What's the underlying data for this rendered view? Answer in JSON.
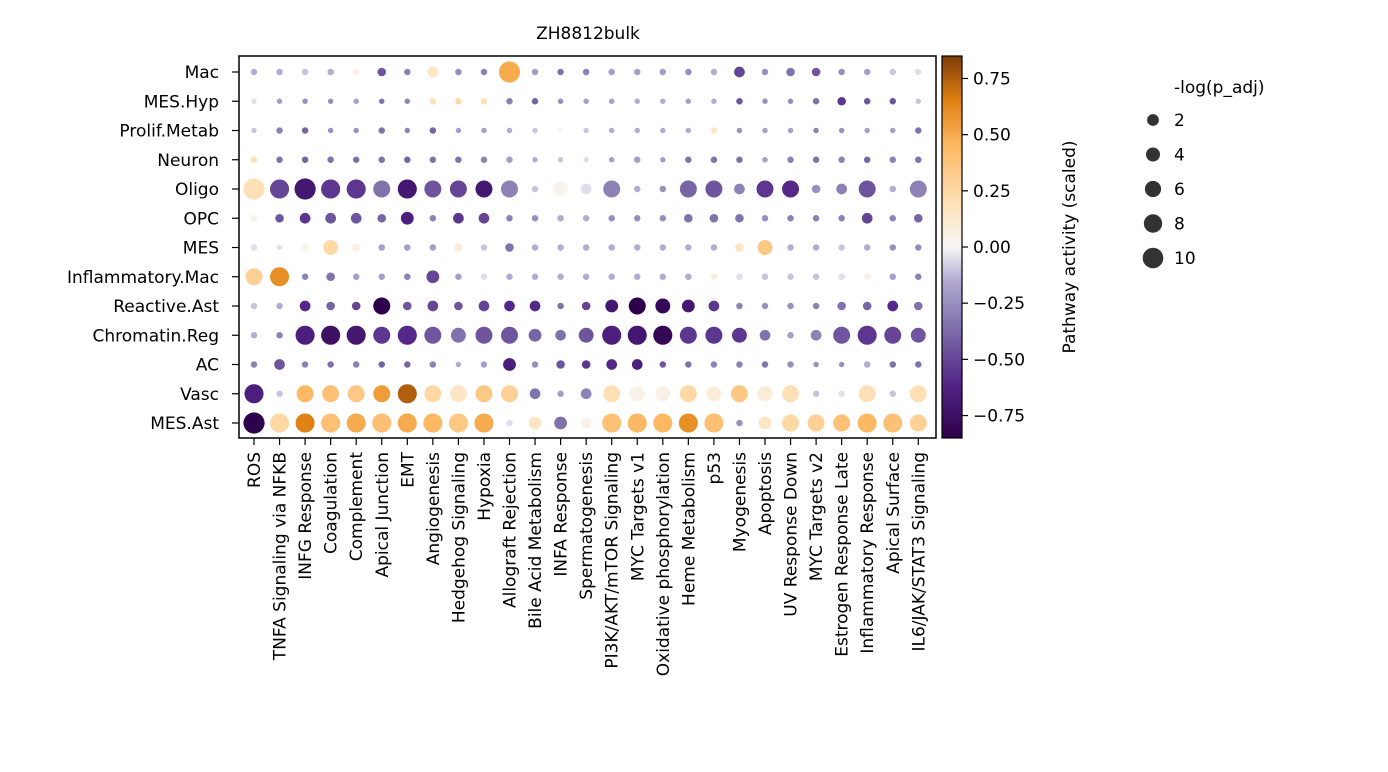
{
  "chart_data": {
    "type": "dotplot",
    "title": "ZH8812bulk",
    "rows": [
      "Mac",
      "MES.Hyp",
      "Prolif.Metab",
      "Neuron",
      "Oligo",
      "OPC",
      "MES",
      "Inflammatory.Mac",
      "Reactive.Ast",
      "Chromatin.Reg",
      "AC",
      "Vasc",
      "MES.Ast"
    ],
    "columns": [
      "ROS",
      "TNFA Signaling via NFKB",
      "INFG Response",
      "Coagulation",
      "Complement",
      "Apical Junction",
      "EMT",
      "Angiogenesis",
      "Hedgehog Signaling",
      "Hypoxia",
      "Allograft Rejection",
      "Bile Acid Metabolism",
      "INFA Response",
      "Spermatogenesis",
      "PI3K/AKT/mTOR Signaling",
      "MYC Targets v1",
      "Oxidative phosphorylation",
      "Heme Metabolism",
      "p53",
      "Myogenesis",
      "Apoptosis",
      "UV Response Down",
      "MYC Targets v2",
      "Estrogen Response Late",
      "Inflammatory Response",
      "Apical Surface",
      "IL6/JAK/STAT3 Signaling"
    ],
    "activity": [
      [
        -0.15,
        -0.15,
        -0.1,
        -0.15,
        0.05,
        -0.45,
        -0.3,
        0.15,
        -0.25,
        -0.3,
        0.5,
        -0.2,
        -0.35,
        -0.3,
        -0.2,
        -0.2,
        -0.2,
        -0.25,
        -0.15,
        -0.5,
        -0.25,
        -0.35,
        -0.45,
        -0.25,
        -0.2,
        -0.1,
        -0.05
      ],
      [
        -0.05,
        -0.2,
        -0.25,
        -0.25,
        -0.2,
        -0.35,
        -0.3,
        0.2,
        0.25,
        0.2,
        -0.3,
        -0.4,
        -0.25,
        -0.2,
        -0.2,
        -0.15,
        -0.15,
        -0.2,
        -0.15,
        -0.45,
        -0.25,
        -0.25,
        -0.35,
        -0.55,
        -0.45,
        -0.45,
        -0.1
      ],
      [
        -0.1,
        -0.3,
        -0.4,
        -0.25,
        -0.25,
        -0.35,
        -0.3,
        -0.4,
        -0.2,
        -0.2,
        -0.15,
        -0.1,
        0.02,
        -0.1,
        -0.15,
        -0.15,
        -0.15,
        -0.15,
        0.15,
        -0.25,
        -0.2,
        -0.2,
        -0.3,
        -0.25,
        -0.2,
        -0.2,
        -0.35
      ],
      [
        0.2,
        -0.35,
        -0.4,
        -0.35,
        -0.35,
        -0.35,
        -0.4,
        -0.35,
        -0.35,
        -0.3,
        -0.2,
        -0.15,
        -0.1,
        -0.05,
        -0.2,
        -0.2,
        -0.2,
        -0.35,
        -0.35,
        -0.35,
        -0.2,
        -0.3,
        -0.35,
        -0.3,
        -0.4,
        -0.3,
        -0.35
      ],
      [
        0.2,
        -0.5,
        -0.7,
        -0.55,
        -0.55,
        -0.35,
        -0.7,
        -0.45,
        -0.5,
        -0.7,
        -0.3,
        -0.1,
        0.03,
        -0.05,
        -0.3,
        -0.15,
        -0.25,
        -0.4,
        -0.45,
        -0.3,
        -0.55,
        -0.6,
        -0.25,
        -0.3,
        -0.45,
        -0.15,
        -0.3
      ],
      [
        0.05,
        -0.45,
        -0.55,
        -0.45,
        -0.45,
        -0.4,
        -0.65,
        -0.3,
        -0.55,
        -0.5,
        -0.3,
        -0.25,
        -0.15,
        -0.15,
        -0.25,
        -0.25,
        -0.25,
        -0.35,
        -0.35,
        -0.35,
        -0.25,
        -0.3,
        -0.3,
        -0.3,
        -0.5,
        -0.3,
        -0.4
      ],
      [
        -0.05,
        -0.05,
        0.02,
        0.25,
        0.05,
        -0.2,
        -0.2,
        -0.2,
        0.1,
        -0.1,
        -0.35,
        -0.15,
        -0.15,
        -0.15,
        -0.15,
        -0.15,
        -0.15,
        -0.15,
        -0.15,
        0.15,
        0.35,
        -0.15,
        -0.15,
        -0.1,
        -0.15,
        -0.25,
        -0.25
      ],
      [
        0.3,
        0.6,
        -0.3,
        -0.35,
        -0.2,
        -0.2,
        -0.3,
        -0.5,
        -0.2,
        -0.05,
        -0.15,
        -0.15,
        -0.15,
        -0.15,
        -0.15,
        -0.15,
        -0.15,
        -0.15,
        0.1,
        -0.05,
        -0.1,
        -0.1,
        -0.1,
        -0.05,
        0.05,
        -0.2,
        -0.3
      ],
      [
        -0.1,
        -0.15,
        -0.6,
        -0.4,
        -0.5,
        -0.85,
        -0.45,
        -0.5,
        -0.45,
        -0.5,
        -0.6,
        -0.6,
        -0.35,
        -0.5,
        -0.7,
        -0.85,
        -0.8,
        -0.7,
        -0.55,
        -0.3,
        -0.25,
        -0.25,
        -0.3,
        -0.35,
        -0.4,
        -0.6,
        -0.35
      ],
      [
        -0.15,
        -0.3,
        -0.65,
        -0.75,
        -0.7,
        -0.55,
        -0.6,
        -0.45,
        -0.35,
        -0.45,
        -0.45,
        -0.4,
        -0.35,
        -0.45,
        -0.65,
        -0.7,
        -0.8,
        -0.55,
        -0.55,
        -0.55,
        -0.35,
        -0.2,
        -0.3,
        -0.45,
        -0.55,
        -0.5,
        -0.45
      ],
      [
        -0.3,
        -0.45,
        -0.3,
        -0.35,
        -0.3,
        -0.4,
        -0.4,
        -0.3,
        -0.15,
        -0.2,
        -0.65,
        -0.25,
        -0.45,
        -0.55,
        -0.6,
        -0.65,
        -0.45,
        -0.35,
        -0.3,
        -0.3,
        -0.35,
        -0.25,
        -0.25,
        -0.25,
        -0.15,
        -0.35,
        -0.35
      ],
      [
        -0.65,
        -0.1,
        0.45,
        0.4,
        0.35,
        0.55,
        0.75,
        0.25,
        0.15,
        0.35,
        0.3,
        -0.35,
        -0.2,
        -0.3,
        0.2,
        0.05,
        0.05,
        0.25,
        0.1,
        0.35,
        0.1,
        0.2,
        -0.1,
        -0.05,
        0.2,
        -0.1,
        0.2
      ],
      [
        -0.85,
        0.25,
        0.65,
        0.4,
        0.5,
        0.4,
        0.5,
        0.45,
        0.35,
        0.5,
        -0.05,
        0.15,
        -0.35,
        0.05,
        0.4,
        0.45,
        0.45,
        0.6,
        0.4,
        -0.25,
        0.15,
        0.25,
        0.3,
        0.4,
        0.45,
        0.4,
        0.3
      ]
    ],
    "size": [
      [
        1,
        1,
        1,
        1,
        1,
        2,
        1,
        3,
        1,
        1,
        8,
        1,
        1,
        1,
        1,
        1,
        1,
        1,
        1,
        3,
        1,
        2,
        2,
        1,
        1,
        1,
        1
      ],
      [
        0.5,
        0.5,
        0.5,
        0.5,
        0.5,
        0.5,
        0.5,
        1,
        1,
        1,
        1,
        1,
        0.5,
        0.5,
        0.5,
        0.5,
        0.5,
        0.5,
        0.5,
        1,
        0.5,
        0.5,
        1,
        2,
        1,
        1,
        0.5
      ],
      [
        0.5,
        1,
        1,
        0.5,
        0.5,
        1,
        0.5,
        1,
        0.5,
        0.5,
        0.5,
        0.5,
        0.5,
        0.5,
        0.5,
        0.5,
        0.5,
        0.5,
        1,
        0.5,
        0.5,
        0.5,
        0.5,
        0.5,
        0.5,
        0.5,
        1
      ],
      [
        1,
        1,
        1,
        1,
        1,
        1,
        1,
        1,
        1,
        1,
        1,
        0.5,
        0.5,
        0.5,
        0.5,
        1,
        0.5,
        1,
        1,
        1,
        0.5,
        1,
        1,
        1,
        1,
        1,
        1
      ],
      [
        8,
        7,
        8,
        7,
        7,
        6,
        7,
        6,
        6,
        6,
        6,
        1,
        5,
        3,
        6,
        1,
        1,
        6,
        6,
        3,
        6,
        6,
        2,
        3,
        6,
        1,
        6
      ],
      [
        1,
        2,
        3,
        3,
        3,
        2,
        4,
        1,
        3,
        3,
        1,
        1,
        1,
        1,
        1,
        1,
        1,
        2,
        2,
        2,
        1,
        1,
        1,
        1,
        3,
        1,
        2
      ],
      [
        1,
        0.5,
        2,
        5,
        2,
        1,
        1,
        1,
        2,
        1,
        2,
        1,
        1,
        1,
        1,
        1,
        1,
        1,
        1,
        2,
        5,
        1,
        1,
        1,
        1,
        1,
        1
      ],
      [
        6,
        7,
        1,
        2,
        1,
        1,
        1,
        4,
        1,
        1,
        1,
        1,
        1,
        1,
        1,
        1,
        1,
        1,
        1,
        1,
        1,
        1,
        1,
        1,
        1,
        1,
        1
      ],
      [
        1,
        1,
        3,
        2,
        2,
        6,
        2,
        3,
        2,
        3,
        3,
        3,
        1,
        2,
        4,
        6,
        5,
        4,
        3,
        1,
        1,
        1,
        1,
        2,
        2,
        3,
        2
      ],
      [
        1,
        1,
        7,
        7,
        7,
        6,
        7,
        6,
        5,
        6,
        6,
        4,
        3,
        5,
        7,
        7,
        7,
        6,
        6,
        5,
        3,
        1,
        3,
        6,
        7,
        6,
        5
      ],
      [
        1,
        3,
        1,
        1,
        1,
        1,
        1,
        1,
        0.5,
        1,
        4,
        1,
        2,
        2,
        3,
        3,
        1,
        1,
        1,
        1,
        1,
        1,
        0.5,
        0.5,
        1,
        1,
        1
      ],
      [
        7,
        1,
        6,
        6,
        6,
        6,
        7,
        6,
        6,
        6,
        6,
        3,
        1,
        3,
        6,
        5,
        5,
        6,
        5,
        6,
        5,
        6,
        1,
        1,
        6,
        1,
        6
      ],
      [
        8,
        7,
        7,
        7,
        7,
        7,
        7,
        7,
        7,
        7,
        1,
        4,
        4,
        3,
        7,
        7,
        7,
        7,
        7,
        1,
        4,
        6,
        6,
        6,
        7,
        7,
        6
      ]
    ],
    "colorbar": {
      "label": "Pathway activity (scaled)",
      "ticks": [
        "0.75",
        "0.50",
        "0.25",
        "0.00",
        "−0.25",
        "−0.50",
        "−0.75"
      ],
      "tick_values": [
        0.75,
        0.5,
        0.25,
        0,
        -0.25,
        -0.5,
        -0.75
      ],
      "range": [
        -0.85,
        0.85
      ],
      "colormap": "PuOr_r"
    },
    "size_legend": {
      "title": "-log(p_adj)",
      "labels": [
        "2",
        "4",
        "6",
        "8",
        "10"
      ],
      "values": [
        2,
        4,
        6,
        8,
        10
      ]
    }
  }
}
